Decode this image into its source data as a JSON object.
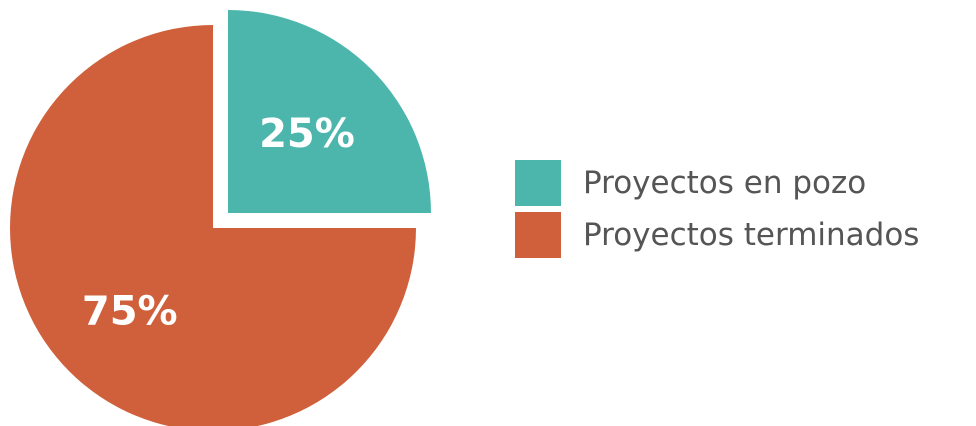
{
  "chart_data": {
    "type": "pie",
    "categories": [
      "Proyectos en pozo",
      "Proyectos terminados"
    ],
    "values": [
      25,
      75
    ],
    "unit": "%",
    "data_labels": [
      "25%",
      "75%"
    ],
    "colors": [
      "#4db6ac",
      "#d0603b"
    ],
    "exploded_slice": "Proyectos en pozo",
    "legend": {
      "position": "right",
      "entries": [
        {
          "label": "Proyectos en pozo",
          "color": "#4db6ac"
        },
        {
          "label": "Proyectos terminados",
          "color": "#d0603b"
        }
      ]
    }
  }
}
